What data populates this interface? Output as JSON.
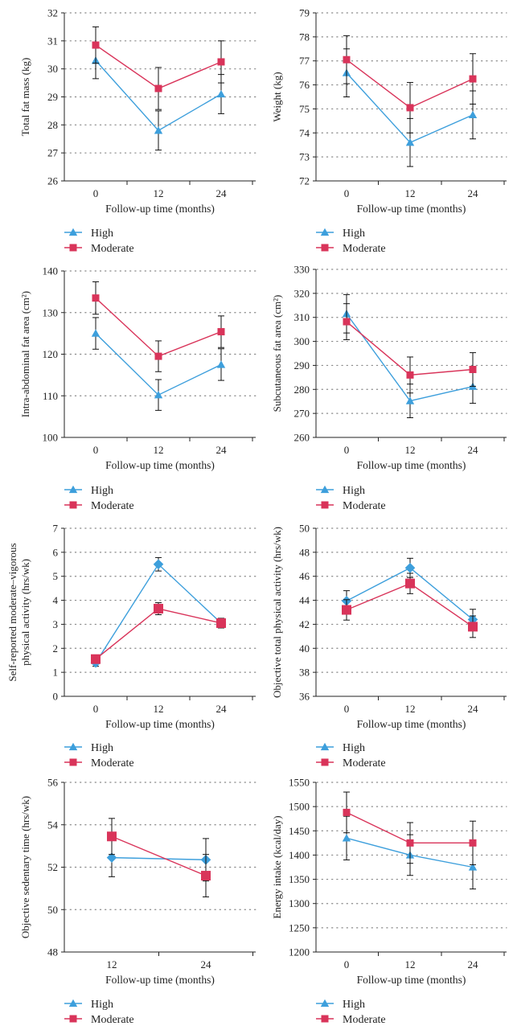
{
  "colors": {
    "high": "#3d9fdc",
    "moderate": "#d9345a",
    "axis": "#222222",
    "grid": "#888888",
    "error": "#111111"
  },
  "chart_data": [
    {
      "type": "line",
      "marker": "triangle",
      "xlabel": "Follow-up time (months)",
      "ylabel": "Total fat mass (kg)",
      "categories": [
        "0",
        "12",
        "24"
      ],
      "ylim": [
        26,
        32
      ],
      "yticks": [
        26,
        27,
        28,
        29,
        30,
        31,
        32
      ],
      "legend": [
        "High",
        "Moderate"
      ],
      "series": [
        {
          "name": "High",
          "values": [
            30.3,
            27.8,
            29.1
          ],
          "err": [
            0.65,
            0.7,
            0.7
          ]
        },
        {
          "name": "Moderate",
          "values": [
            30.85,
            29.3,
            30.25
          ],
          "err": [
            0.65,
            0.75,
            0.75
          ]
        }
      ]
    },
    {
      "type": "line",
      "marker": "triangle",
      "xlabel": "Follow-up time (months)",
      "ylabel": "Weight (kg)",
      "categories": [
        "0",
        "12",
        "24"
      ],
      "ylim": [
        72,
        79
      ],
      "yticks": [
        72,
        73,
        74,
        75,
        76,
        77,
        78,
        79
      ],
      "legend": [
        "High",
        "Moderate"
      ],
      "series": [
        {
          "name": "High",
          "values": [
            76.5,
            73.6,
            74.75
          ],
          "err": [
            1.0,
            1.0,
            1.0
          ]
        },
        {
          "name": "Moderate",
          "values": [
            77.05,
            75.05,
            76.25
          ],
          "err": [
            1.0,
            1.05,
            1.05
          ]
        }
      ]
    },
    {
      "type": "line",
      "marker": "triangle",
      "xlabel": "Follow-up time (months)",
      "ylabel": "Intra-abdominal fat area (cm²)",
      "categories": [
        "0",
        "12",
        "24"
      ],
      "ylim": [
        100,
        140
      ],
      "yticks": [
        100,
        110,
        120,
        130,
        140
      ],
      "legend": [
        "High",
        "Moderate"
      ],
      "series": [
        {
          "name": "High",
          "values": [
            125,
            110.2,
            117.5
          ],
          "err": [
            3.8,
            3.7,
            3.8
          ]
        },
        {
          "name": "Moderate",
          "values": [
            133.5,
            119.5,
            125.4
          ],
          "err": [
            3.9,
            3.7,
            3.8
          ]
        }
      ]
    },
    {
      "type": "line",
      "marker": "triangle",
      "xlabel": "Follow-up time (months)",
      "ylabel": "Subcutaneous fat area (cm²)",
      "categories": [
        "0",
        "12",
        "24"
      ],
      "ylim": [
        260,
        330
      ],
      "yticks": [
        260,
        270,
        280,
        290,
        300,
        310,
        320,
        330
      ],
      "legend": [
        "High",
        "Moderate"
      ],
      "series": [
        {
          "name": "High",
          "values": [
            311.5,
            275.2,
            281.2
          ],
          "err": [
            8,
            7,
            7
          ]
        },
        {
          "name": "Moderate",
          "values": [
            308.2,
            286,
            288.3
          ],
          "err": [
            7.5,
            7.5,
            7
          ]
        }
      ]
    },
    {
      "type": "line",
      "marker": "diamond",
      "xlabel": "Follow-up time (months)",
      "ylabel": "Self-reported moderate–vigorous physical activity (hrs/wk)",
      "ylabel_lines": [
        "Self-reported moderate–vigorous",
        "physical activity (hrs/wk)"
      ],
      "categories": [
        "0",
        "12",
        "24"
      ],
      "ylim": [
        0,
        7
      ],
      "yticks": [
        0,
        1,
        2,
        3,
        4,
        5,
        6,
        7
      ],
      "legend": [
        "High",
        "Moderate"
      ],
      "series": [
        {
          "name": "High",
          "values": [
            1.4,
            5.5,
            3.05
          ],
          "err": [
            0.15,
            0.28,
            0.2
          ]
        },
        {
          "name": "Moderate",
          "values": [
            1.55,
            3.65,
            3.05
          ],
          "err": [
            0.15,
            0.25,
            0.2
          ]
        }
      ]
    },
    {
      "type": "line",
      "marker": "diamond",
      "xlabel": "Follow-up time (months)",
      "ylabel": "Objective total physical activity (hrs/wk)",
      "categories": [
        "0",
        "12",
        "24"
      ],
      "ylim": [
        36,
        50
      ],
      "yticks": [
        36,
        38,
        40,
        42,
        44,
        46,
        48,
        50
      ],
      "legend": [
        "High",
        "Moderate"
      ],
      "series": [
        {
          "name": "High",
          "values": [
            43.95,
            46.7,
            42.4
          ],
          "err": [
            0.85,
            0.8,
            0.85
          ]
        },
        {
          "name": "Moderate",
          "values": [
            43.2,
            45.4,
            41.8
          ],
          "err": [
            0.85,
            0.85,
            0.9
          ]
        }
      ]
    },
    {
      "type": "line",
      "marker": "diamond",
      "xlabel": "Follow-up time (months)",
      "ylabel": "Objective sedentary time (hrs/wk)",
      "categories": [
        "12",
        "24"
      ],
      "ylim": [
        48,
        56
      ],
      "yticks": [
        48,
        50,
        52,
        54,
        56
      ],
      "legend": [
        "High",
        "Moderate"
      ],
      "series": [
        {
          "name": "High",
          "values": [
            52.45,
            52.35
          ],
          "err": [
            0.9,
            1.0
          ]
        },
        {
          "name": "Moderate",
          "values": [
            53.45,
            51.6
          ],
          "err": [
            0.85,
            1.0
          ]
        }
      ]
    },
    {
      "type": "line",
      "marker": "triangle",
      "xlabel": "Follow-up time (months)",
      "ylabel": "Energy intake (kcal/day)",
      "categories": [
        "0",
        "12",
        "24"
      ],
      "ylim": [
        1200,
        1550
      ],
      "yticks": [
        1200,
        1250,
        1300,
        1350,
        1400,
        1450,
        1500,
        1550
      ],
      "legend": [
        "High",
        "Moderate"
      ],
      "series": [
        {
          "name": "High",
          "values": [
            1435,
            1400,
            1375
          ],
          "err": [
            45,
            42,
            45
          ]
        },
        {
          "name": "Moderate",
          "values": [
            1488,
            1425,
            1425
          ],
          "err": [
            42,
            42,
            45
          ]
        }
      ]
    }
  ]
}
